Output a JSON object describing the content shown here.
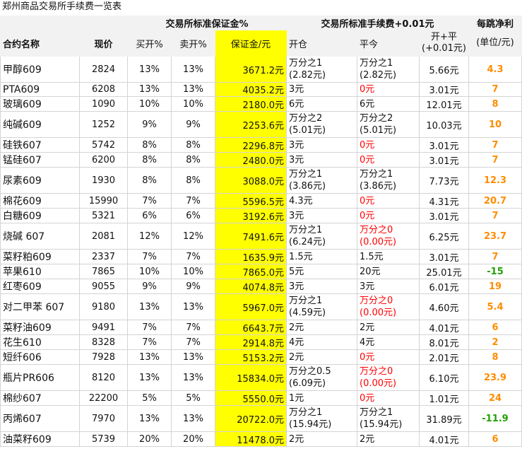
{
  "title": "郑州商品交易所手续费一览表",
  "headers": {
    "margin_group": "交易所标准保证金%",
    "fee_group": "交易所标准手续费+0.01元",
    "net_line1": "每跳净利",
    "net_line2": "(单位/元)",
    "name": "合约名称",
    "price": "现价",
    "buy_open": "买开%",
    "sell_open": "卖开%",
    "margin": "保证金/元",
    "open": "开仓",
    "close_today": "平今",
    "total_line1": "开+平",
    "total_line2": "(+0.01元)"
  },
  "colors": {
    "highlight": "#ffff00",
    "red": "#ff0000",
    "orange": "#ff8c00",
    "green": "#22a000"
  },
  "rows": [
    {
      "name": "甲醇609",
      "price": "2824",
      "buy": "13%",
      "sell": "13%",
      "margin": "3671.2元",
      "open1": "万分之1",
      "open2": "(2.82元)",
      "close1": "万分之1",
      "close2": "(2.82元)",
      "close_red": false,
      "total": "5.66元",
      "net": "4.3",
      "net_color": "orange"
    },
    {
      "name": "PTA609",
      "price": "6208",
      "buy": "13%",
      "sell": "13%",
      "margin": "4035.2元",
      "open1": "3元",
      "open2": "",
      "close1": "0元",
      "close2": "",
      "close_red": true,
      "total": "3.01元",
      "net": "7",
      "net_color": "orange"
    },
    {
      "name": "玻璃609",
      "price": "1090",
      "buy": "10%",
      "sell": "10%",
      "margin": "2180.0元",
      "open1": "6元",
      "open2": "",
      "close1": "6元",
      "close2": "",
      "close_red": false,
      "total": "12.01元",
      "net": "8",
      "net_color": "orange"
    },
    {
      "name": "纯碱609",
      "price": "1252",
      "buy": "9%",
      "sell": "9%",
      "margin": "2253.6元",
      "open1": "万分之2",
      "open2": "(5.01元)",
      "close1": "万分之2",
      "close2": "(5.01元)",
      "close_red": false,
      "total": "10.03元",
      "net": "10",
      "net_color": "orange"
    },
    {
      "name": "硅铁607",
      "price": "5742",
      "buy": "8%",
      "sell": "8%",
      "margin": "2296.8元",
      "open1": "3元",
      "open2": "",
      "close1": "0元",
      "close2": "",
      "close_red": true,
      "total": "3.01元",
      "net": "7",
      "net_color": "orange"
    },
    {
      "name": "锰硅607",
      "price": "6200",
      "buy": "8%",
      "sell": "8%",
      "margin": "2480.0元",
      "open1": "3元",
      "open2": "",
      "close1": "0元",
      "close2": "",
      "close_red": true,
      "total": "3.01元",
      "net": "7",
      "net_color": "orange"
    },
    {
      "name": "尿素609",
      "price": "1930",
      "buy": "8%",
      "sell": "8%",
      "margin": "3088.0元",
      "open1": "万分之1",
      "open2": "(3.86元)",
      "close1": "万分之1",
      "close2": "(3.86元)",
      "close_red": false,
      "total": "7.73元",
      "net": "12.3",
      "net_color": "orange"
    },
    {
      "name": "棉花609",
      "price": "15990",
      "buy": "7%",
      "sell": "7%",
      "margin": "5596.5元",
      "open1": "4.3元",
      "open2": "",
      "close1": "0元",
      "close2": "",
      "close_red": true,
      "total": "4.31元",
      "net": "20.7",
      "net_color": "orange"
    },
    {
      "name": "白糖609",
      "price": "5321",
      "buy": "6%",
      "sell": "6%",
      "margin": "3192.6元",
      "open1": "3元",
      "open2": "",
      "close1": "0元",
      "close2": "",
      "close_red": true,
      "total": "3.01元",
      "net": "7",
      "net_color": "orange"
    },
    {
      "name": "烧碱 607",
      "price": "2081",
      "buy": "12%",
      "sell": "12%",
      "margin": "7491.6元",
      "open1": "万分之1",
      "open2": "(6.24元)",
      "close1": "万分之0",
      "close2": "(0.00元)",
      "close_red": true,
      "total": "6.25元",
      "net": "23.7",
      "net_color": "orange"
    },
    {
      "name": "菜籽粕609",
      "price": "2337",
      "buy": "7%",
      "sell": "7%",
      "margin": "1635.9元",
      "open1": "1.5元",
      "open2": "",
      "close1": "1.5元",
      "close2": "",
      "close_red": false,
      "total": "3.01元",
      "net": "7",
      "net_color": "orange"
    },
    {
      "name": "苹果610",
      "price": "7865",
      "buy": "10%",
      "sell": "10%",
      "margin": "7865.0元",
      "open1": "5元",
      "open2": "",
      "close1": "20元",
      "close2": "",
      "close_red": false,
      "total": "25.01元",
      "net": "-15",
      "net_color": "green"
    },
    {
      "name": "红枣609",
      "price": "9055",
      "buy": "9%",
      "sell": "9%",
      "margin": "4074.8元",
      "open1": "3元",
      "open2": "",
      "close1": "3元",
      "close2": "",
      "close_red": false,
      "total": "6.01元",
      "net": "19",
      "net_color": "orange"
    },
    {
      "name": "对二甲苯 607",
      "price": "9180",
      "buy": "13%",
      "sell": "13%",
      "margin": "5967.0元",
      "open1": "万分之1",
      "open2": "(4.59元)",
      "close1": "万分之0",
      "close2": "(0.00元)",
      "close_red": true,
      "total": "4.60元",
      "net": "5.4",
      "net_color": "orange"
    },
    {
      "name": "菜籽油609",
      "price": "9491",
      "buy": "7%",
      "sell": "7%",
      "margin": "6643.7元",
      "open1": "2元",
      "open2": "",
      "close1": "2元",
      "close2": "",
      "close_red": false,
      "total": "4.01元",
      "net": "6",
      "net_color": "orange"
    },
    {
      "name": "花生610",
      "price": "8328",
      "buy": "7%",
      "sell": "7%",
      "margin": "2914.8元",
      "open1": "4元",
      "open2": "",
      "close1": "4元",
      "close2": "",
      "close_red": false,
      "total": "8.01元",
      "net": "2",
      "net_color": "orange"
    },
    {
      "name": "短纤606",
      "price": "7928",
      "buy": "13%",
      "sell": "13%",
      "margin": "5153.2元",
      "open1": "2元",
      "open2": "",
      "close1": "0元",
      "close2": "",
      "close_red": true,
      "total": "2.01元",
      "net": "8",
      "net_color": "orange"
    },
    {
      "name": "瓶片PR606",
      "price": "8120",
      "buy": "13%",
      "sell": "13%",
      "margin": "15834.0元",
      "open1": "万分之0.5",
      "open2": "(6.09元)",
      "close1": "万分之0",
      "close2": "(0.00元)",
      "close_red": true,
      "total": "6.10元",
      "net": "23.9",
      "net_color": "orange"
    },
    {
      "name": "棉纱607",
      "price": "22200",
      "buy": "5%",
      "sell": "5%",
      "margin": "5550.0元",
      "open1": "1元",
      "open2": "",
      "close1": "0元",
      "close2": "",
      "close_red": true,
      "total": "1.01元",
      "net": "24",
      "net_color": "orange"
    },
    {
      "name": "丙烯607",
      "price": "7970",
      "buy": "13%",
      "sell": "13%",
      "margin": "20722.0元",
      "open1": "万分之1",
      "open2": "(15.94元)",
      "close1": "万分之1",
      "close2": "(15.94元)",
      "close_red": false,
      "total": "31.89元",
      "net": "-11.9",
      "net_color": "green"
    },
    {
      "name": "油菜籽609",
      "price": "5739",
      "buy": "20%",
      "sell": "20%",
      "margin": "11478.0元",
      "open1": "2元",
      "open2": "",
      "close1": "2元",
      "close2": "",
      "close_red": false,
      "total": "4.01元",
      "net": "6",
      "net_color": "orange"
    }
  ]
}
